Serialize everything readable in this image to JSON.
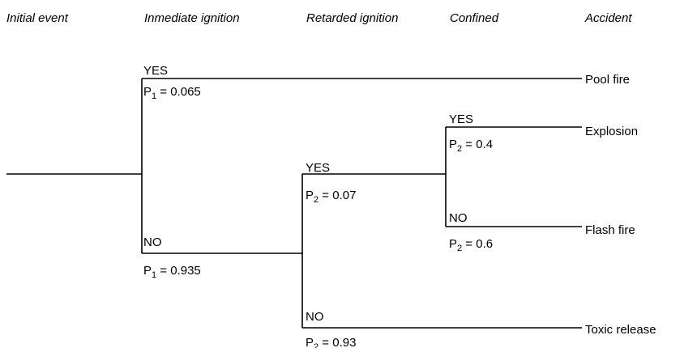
{
  "headers": [
    "Initial event",
    "Inmediate ignition",
    "Retarded ignition",
    "Confined",
    "Accident"
  ],
  "branches": [
    {
      "answer": "YES",
      "probability": {
        "symbol": "P",
        "subscript": "1",
        "text": " = 0.065"
      }
    },
    {
      "answer": "NO",
      "probability": {
        "symbol": "P",
        "subscript": "1",
        "text": " = 0.935"
      }
    },
    {
      "answer": "YES",
      "probability": {
        "symbol": "P",
        "subscript": "2",
        "text": " = 0.07"
      }
    },
    {
      "answer": "NO",
      "probability": {
        "symbol": "P",
        "subscript": "2",
        "text": " = 0.93"
      }
    },
    {
      "answer": "YES",
      "probability": {
        "symbol": "P",
        "subscript": "2",
        "text": " = 0.4"
      }
    },
    {
      "answer": "NO",
      "probability": {
        "symbol": "P",
        "subscript": "2",
        "text": " = 0.6"
      }
    }
  ],
  "accidents": [
    "Pool fire",
    "Explosion",
    "Flash fire",
    "Toxic release"
  ]
}
